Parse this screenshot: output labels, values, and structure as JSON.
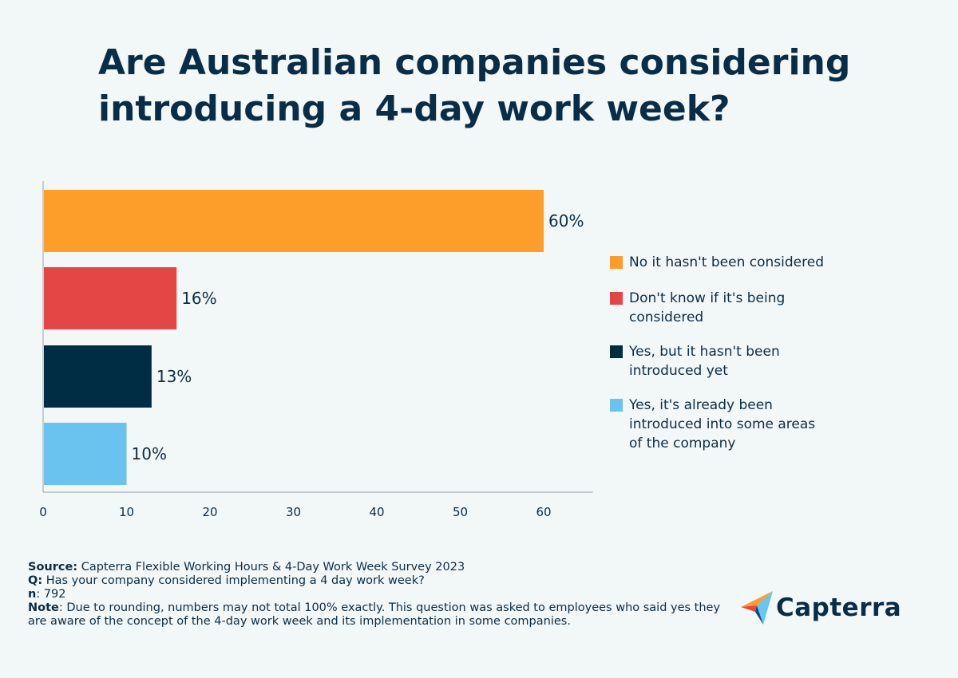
{
  "title": "Are Australian companies considering introducing a 4-day work week?",
  "chart_data": {
    "type": "bar",
    "orientation": "horizontal",
    "categories": [
      "No it hasn't been considered",
      "Don't know if it's being considered",
      "Yes, but it hasn't been introduced yet",
      "Yes, it's already been introduced into some areas of the company"
    ],
    "values": [
      60,
      16,
      13,
      10
    ],
    "data_labels": [
      "60%",
      "16%",
      "13%",
      "10%"
    ],
    "colors": [
      "#fd9e2b",
      "#e44646",
      "#002c44",
      "#69c3ee"
    ],
    "xlim": [
      0,
      66
    ],
    "xticks": [
      0,
      10,
      20,
      30,
      40,
      50,
      60
    ],
    "xlabel": "",
    "ylabel": "",
    "legend_position": "right"
  },
  "legend": [
    {
      "line1": "No it hasn't been considered",
      "line2": "",
      "line3": "",
      "color": "#fd9e2b"
    },
    {
      "line1": "Don't know if it's being",
      "line2": "considered",
      "line3": "",
      "color": "#e44646"
    },
    {
      "line1": "Yes, but it hasn't been",
      "line2": "introduced yet",
      "line3": "",
      "color": "#002c44"
    },
    {
      "line1": "Yes, it's already been",
      "line2": "introduced into some areas",
      "line3": "of the company",
      "color": "#69c3ee"
    }
  ],
  "footnote": {
    "source_label": "Source:",
    "source_text": " Capterra Flexible Working Hours & 4-Day Work Week Survey 2023",
    "q_label": "Q:",
    "q_text": " Has your company considered implementing a 4 day work week?",
    "n_label": "n",
    "n_text": ": 792",
    "note_label": "Note",
    "note_text": ": Due to rounding, numbers may not total 100% exactly. This question was asked to employees who said yes they are aware of the concept of the 4-day work week and its implementation in some companies."
  },
  "logo": {
    "name": "Capterra"
  }
}
